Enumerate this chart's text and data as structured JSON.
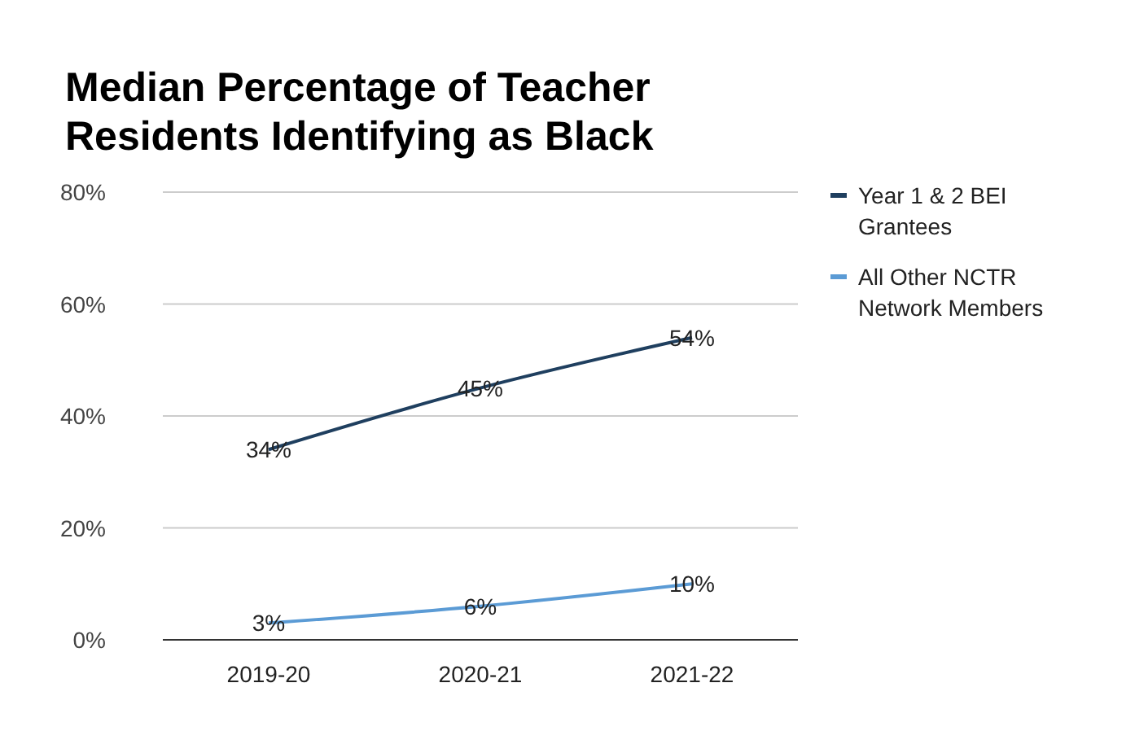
{
  "chart_data": {
    "type": "line",
    "title": "Median Percentage of Teacher Residents Identifying as Black",
    "categories": [
      "2019-20",
      "2020-21",
      "2021-22"
    ],
    "series": [
      {
        "name": "Year 1 & 2 BEI Grantees",
        "color": "#1f3f5f",
        "values": [
          34,
          45,
          54
        ],
        "value_labels": [
          "34%",
          "45%",
          "54%"
        ]
      },
      {
        "name": "All Other NCTR Network Members",
        "color": "#5b9bd5",
        "values": [
          3,
          6,
          10
        ],
        "value_labels": [
          "3%",
          "6%",
          "10%"
        ]
      }
    ],
    "ylim": [
      0,
      80
    ],
    "yticks": [
      {
        "value": 0,
        "label": "0%"
      },
      {
        "value": 20,
        "label": "20%"
      },
      {
        "value": 40,
        "label": "40%"
      },
      {
        "value": 60,
        "label": "60%"
      },
      {
        "value": 80,
        "label": "80%"
      }
    ],
    "grid": "y",
    "legend": "right",
    "marker": "none",
    "line_style": "solid"
  }
}
